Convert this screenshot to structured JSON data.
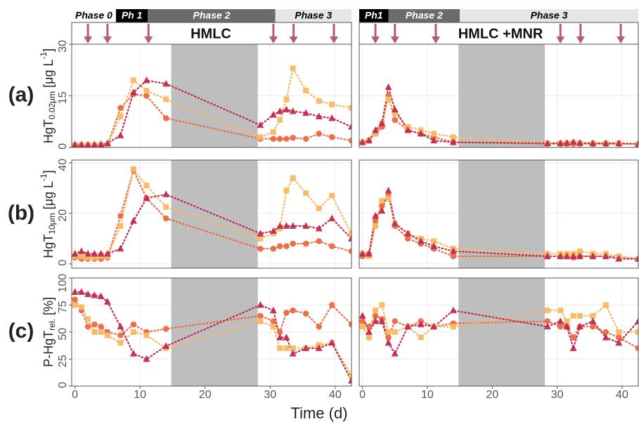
{
  "xlabel": "Time (d)",
  "rows": [
    {
      "label": "(a)",
      "ylabel": "HgT",
      "ylabel_sub": "0.02μm",
      "ylabel_unit": "[μg L",
      "ylabel_sup": "-1",
      "ylabel_end": "]"
    },
    {
      "label": "(b)",
      "ylabel": "HgT",
      "ylabel_sub": "10μm",
      "ylabel_unit": "[μg L",
      "ylabel_sup": "-1",
      "ylabel_end": "]"
    },
    {
      "label": "(c)",
      "ylabel": "P-HgT",
      "ylabel_sub": "rel.",
      "ylabel_unit": "[%]"
    }
  ],
  "columns": [
    {
      "title": "HMLC",
      "arrow_color": "#b65c70",
      "arrows": [
        2,
        5,
        11.3,
        30.5,
        33.6,
        39.8
      ],
      "phases": [
        {
          "label": "Phase 0",
          "start": -0.5,
          "end": 6.3,
          "fill": "#ffffff",
          "text_color": "#000000"
        },
        {
          "label": "Ph 1",
          "start": 6.3,
          "end": 11.2,
          "fill": "#000000",
          "text_color": "#ffffff"
        },
        {
          "label": "Phase 2",
          "start": 11.2,
          "end": 30.8,
          "fill": "#6b6b6b",
          "text_color": "#ffffff"
        },
        {
          "label": "Phase 3",
          "start": 30.8,
          "end": 42.5,
          "fill": "#e6e6e6",
          "text_color": "#000000"
        }
      ]
    },
    {
      "title": "HMLC +MNR",
      "arrow_color": "#b65c70",
      "arrows": [
        2,
        5,
        11.3,
        30.5,
        33.6,
        39.8
      ],
      "phases": [
        {
          "label": "Ph1",
          "start": -0.5,
          "end": 4,
          "fill": "#000000",
          "text_color": "#ffffff"
        },
        {
          "label": "Phase 2",
          "start": 4,
          "end": 15,
          "fill": "#6b6b6b",
          "text_color": "#ffffff"
        },
        {
          "label": "Phase 3",
          "start": 15,
          "end": 42.5,
          "fill": "#e6e6e6",
          "text_color": "#000000"
        }
      ]
    }
  ],
  "chart_data": [
    {
      "type": "line",
      "xlim": [
        -0.5,
        42.5
      ],
      "xticks": [
        0,
        10,
        20,
        30,
        40
      ],
      "ylim": [
        0,
        30
      ],
      "yticks": [
        0,
        15,
        30
      ],
      "grid": true,
      "shaded_x": [
        14.8,
        28.1
      ],
      "x": [
        0,
        1,
        2,
        3,
        4,
        5,
        7,
        9,
        11,
        14,
        28.5,
        30.5,
        31.5,
        32.5,
        33.5,
        35.5,
        37.5,
        39.5,
        42.5
      ],
      "series": [
        {
          "marker": "circle",
          "color": "#ea6b45",
          "values": [
            0.5,
            0.5,
            0.5,
            0.5,
            0.5,
            0.6,
            11.5,
            15.5,
            15,
            8.5,
            2.5,
            2.5,
            2.5,
            2.5,
            2.8,
            2.5,
            4,
            3,
            2
          ]
        },
        {
          "marker": "square",
          "color": "#f8b862",
          "values": [
            0.7,
            0.7,
            0.7,
            0.7,
            0.7,
            0.8,
            9,
            19.5,
            16.5,
            14,
            3,
            4.5,
            8,
            14,
            23,
            16.5,
            13.5,
            12.5,
            11.5
          ]
        },
        {
          "marker": "triangle",
          "color": "#c12a4e",
          "values": [
            0.8,
            0.8,
            0.8,
            0.8,
            0.9,
            1.2,
            3.5,
            16,
            19.5,
            18.5,
            6.5,
            9.5,
            10.5,
            11,
            10.5,
            10,
            9,
            8.5,
            6
          ]
        }
      ]
    },
    {
      "type": "line",
      "xlim": [
        -0.5,
        42.5
      ],
      "xticks": [
        0,
        10,
        20,
        30,
        40
      ],
      "ylim": [
        0,
        30
      ],
      "yticks": [
        0,
        15,
        30
      ],
      "grid": true,
      "shaded_x": [
        14.8,
        28.1
      ],
      "x": [
        0,
        1,
        2,
        3,
        4,
        5,
        7,
        9,
        11,
        14,
        28.5,
        30.5,
        31.5,
        32.5,
        33.5,
        35.5,
        37.5,
        39.5,
        42.5
      ],
      "series": [
        {
          "marker": "circle",
          "color": "#ea6b45",
          "values": [
            1.5,
            2,
            4,
            6,
            15,
            8,
            5,
            4,
            3,
            1.5,
            1,
            1,
            1,
            1,
            1,
            1,
            1,
            1,
            1
          ]
        },
        {
          "marker": "square",
          "color": "#f8b862",
          "values": [
            1.5,
            2,
            4,
            7,
            14,
            10,
            6,
            5,
            4,
            3,
            1.2,
            1.2,
            1.2,
            1.3,
            1.2,
            1.2,
            1.2,
            1.2,
            1
          ]
        },
        {
          "marker": "triangle",
          "color": "#c12a4e",
          "values": [
            1.5,
            2,
            5,
            7,
            17.5,
            11,
            5,
            4,
            2,
            1.5,
            1.2,
            1.2,
            1.3,
            1.5,
            1.3,
            1.2,
            1.2,
            1.2,
            1
          ]
        }
      ]
    },
    {
      "type": "line",
      "xlim": [
        -0.5,
        42.5
      ],
      "xticks": [
        0,
        10,
        20,
        30,
        40
      ],
      "ylim": [
        -1.7,
        41.1
      ],
      "yticks": [
        0,
        20,
        40
      ],
      "grid": true,
      "shaded_x": [
        14.8,
        28.1
      ],
      "x": [
        0,
        1,
        2,
        3,
        4,
        5,
        7,
        9,
        11,
        14,
        28.5,
        30.5,
        31.5,
        32.5,
        33.5,
        35.5,
        37.5,
        39.5,
        42.5
      ],
      "series": [
        {
          "marker": "circle",
          "color": "#ea6b45",
          "values": [
            2.5,
            2,
            2,
            2,
            2,
            2.5,
            19,
            37,
            26,
            18,
            6,
            6,
            7,
            7,
            8,
            8,
            9,
            7,
            5
          ]
        },
        {
          "marker": "square",
          "color": "#f8b862",
          "values": [
            3,
            3,
            2.5,
            2.5,
            3,
            3,
            15,
            37.5,
            31,
            22.5,
            10,
            12,
            14,
            29,
            34,
            28,
            22,
            27,
            12
          ]
        },
        {
          "marker": "triangle",
          "color": "#c12a4e",
          "values": [
            4,
            5,
            4,
            4,
            4,
            4,
            6,
            17,
            26,
            27.5,
            12,
            13,
            15,
            15,
            15,
            15,
            14,
            18,
            10
          ]
        }
      ]
    },
    {
      "type": "line",
      "xlim": [
        -0.5,
        42.5
      ],
      "xticks": [
        0,
        10,
        20,
        30,
        40
      ],
      "ylim": [
        -1.7,
        41.1
      ],
      "yticks": [
        0,
        20,
        40
      ],
      "grid": true,
      "shaded_x": [
        14.8,
        28.1
      ],
      "x": [
        0,
        1,
        2,
        3,
        4,
        5,
        7,
        9,
        11,
        14,
        28.5,
        30.5,
        31.5,
        32.5,
        33.5,
        35.5,
        37.5,
        39.5,
        42.5
      ],
      "series": [
        {
          "marker": "circle",
          "color": "#ea6b45",
          "values": [
            3,
            4,
            17,
            23,
            27,
            15,
            10,
            8,
            6,
            3,
            3,
            3,
            3,
            2.5,
            3,
            3,
            3,
            2.5,
            2
          ]
        },
        {
          "marker": "square",
          "color": "#f8b862",
          "values": [
            4,
            3,
            15,
            25,
            26,
            16,
            12,
            10,
            9,
            6,
            4,
            4,
            4,
            4,
            5,
            4,
            4,
            3,
            2
          ]
        },
        {
          "marker": "triangle",
          "color": "#c12a4e",
          "values": [
            4,
            4,
            19,
            21,
            29,
            16,
            12,
            9,
            7,
            5,
            3,
            3,
            3,
            3,
            3,
            3,
            3,
            2,
            2
          ]
        }
      ]
    },
    {
      "type": "line",
      "xlim": [
        -0.5,
        42.5
      ],
      "xticks": [
        0,
        10,
        20,
        30,
        40
      ],
      "ylim": [
        0,
        100
      ],
      "yticks": [
        0,
        25,
        50,
        75,
        100
      ],
      "grid": true,
      "shaded_x": [
        14.8,
        28.1
      ],
      "x": [
        0,
        1,
        2,
        3,
        4,
        5,
        7,
        9,
        11,
        14,
        28.5,
        30.5,
        31.5,
        32.5,
        33.5,
        35.5,
        37.5,
        39.5,
        42.5
      ],
      "series": [
        {
          "marker": "circle",
          "color": "#ea6b45",
          "values": [
            80,
            70,
            55,
            57,
            55,
            50,
            47,
            57,
            50,
            53,
            65,
            60,
            50,
            68,
            70,
            67,
            55,
            75,
            57
          ]
        },
        {
          "marker": "square",
          "color": "#f8b862",
          "values": [
            75,
            73,
            62,
            50,
            50,
            47,
            40,
            50,
            47,
            35,
            60,
            55,
            35,
            35,
            35,
            35,
            38,
            40,
            10
          ]
        },
        {
          "marker": "triangle",
          "color": "#c12a4e",
          "values": [
            87,
            87,
            85,
            84,
            83,
            78,
            55,
            30,
            25,
            37,
            75,
            70,
            45,
            45,
            30,
            35,
            35,
            40,
            5
          ]
        }
      ]
    },
    {
      "type": "line",
      "xlim": [
        -0.5,
        42.5
      ],
      "xticks": [
        0,
        10,
        20,
        30,
        40
      ],
      "ylim": [
        0,
        100
      ],
      "yticks": [
        0,
        25,
        50,
        75,
        100
      ],
      "grid": true,
      "shaded_x": [
        14.8,
        28.1
      ],
      "x": [
        0,
        1,
        2,
        3,
        4,
        5,
        7,
        9,
        11,
        14,
        28.5,
        30.5,
        31.5,
        32.5,
        33.5,
        35.5,
        37.5,
        39.5,
        42.5
      ],
      "series": [
        {
          "marker": "circle",
          "color": "#ea6b45",
          "values": [
            60,
            55,
            65,
            62,
            45,
            60,
            55,
            60,
            55,
            58,
            60,
            55,
            55,
            45,
            55,
            55,
            50,
            45,
            35
          ]
        },
        {
          "marker": "square",
          "color": "#f8b862",
          "values": [
            55,
            45,
            70,
            75,
            50,
            50,
            55,
            45,
            55,
            55,
            70,
            70,
            60,
            65,
            65,
            65,
            75,
            50,
            50
          ]
        },
        {
          "marker": "triangle",
          "color": "#c12a4e",
          "values": [
            65,
            50,
            60,
            60,
            40,
            30,
            55,
            57,
            55,
            70,
            55,
            60,
            55,
            35,
            55,
            60,
            45,
            40,
            60
          ]
        }
      ]
    }
  ]
}
